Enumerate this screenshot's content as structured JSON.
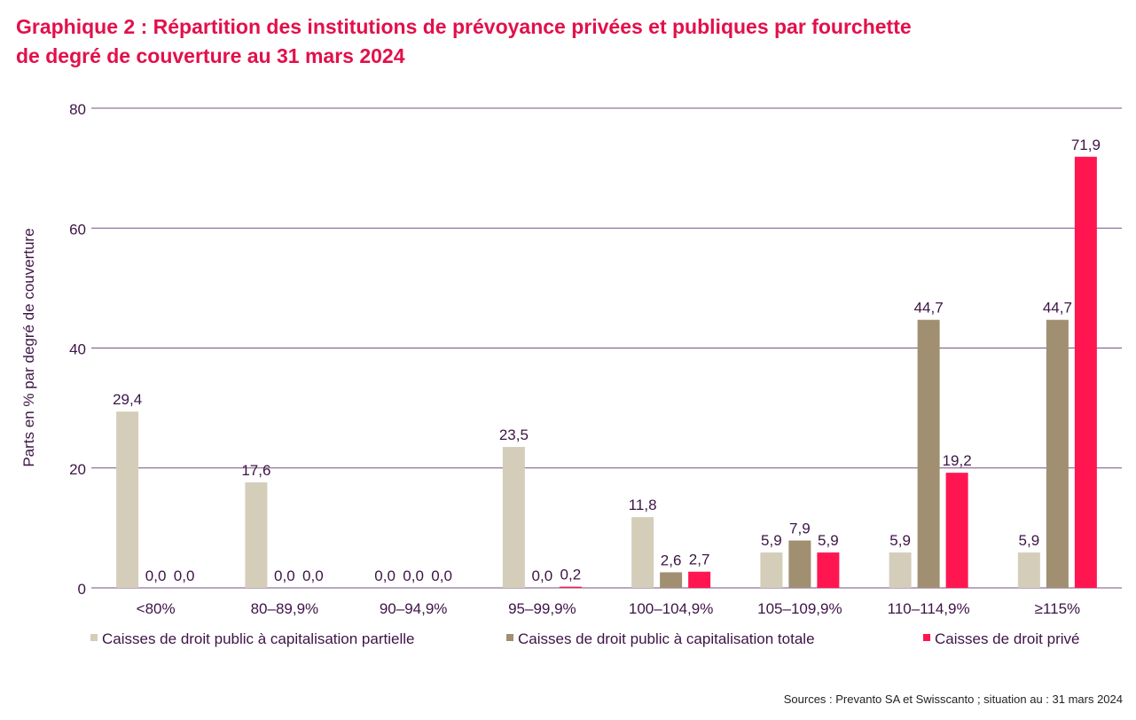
{
  "title_lines": [
    "Graphique 2 : Répartition des institutions de prévoyance privées et publiques par fourchette",
    "de degré de couverture au 31 mars 2024"
  ],
  "source": "Sources : Prevanto SA et Swisscanto ; situation au : 31 mars 2024",
  "colors": {
    "title": "#e2104a",
    "axis_text": "#3d1446",
    "grid": "#7a4f85",
    "partial": "#d4cdb9",
    "total": "#a08f71",
    "private": "#ff1650"
  },
  "chart_data": {
    "type": "bar",
    "ylabel": "Parts en % par degré de couverture",
    "xlabel": "",
    "ylim": [
      0,
      80
    ],
    "yticks": [
      0,
      20,
      40,
      60,
      80
    ],
    "grid": true,
    "legend_position": "bottom",
    "categories": [
      "<80%",
      "80–89,9%",
      "90–94,9%",
      "95–99,9%",
      "100–104,9%",
      "105–109,9%",
      "110–114,9%",
      "≥115%"
    ],
    "series": [
      {
        "name": "Caisses de droit public à capitalisation partielle",
        "color": "#d4cdb9",
        "values": [
          29.4,
          17.6,
          0.0,
          23.5,
          11.8,
          5.9,
          5.9,
          5.9
        ],
        "labels": [
          "29,4",
          "17,6",
          "0,0",
          "23,5",
          "11,8",
          "5,9",
          "5,9",
          "5,9"
        ]
      },
      {
        "name": "Caisses de droit public à capitalisation totale",
        "color": "#a08f71",
        "values": [
          0.0,
          0.0,
          0.0,
          0.0,
          2.6,
          7.9,
          44.7,
          44.7
        ],
        "labels": [
          "0,0",
          "0,0",
          "0,0",
          "0,0",
          "2,6",
          "7,9",
          "44,7",
          "44,7"
        ]
      },
      {
        "name": "Caisses de droit privé",
        "color": "#ff1650",
        "values": [
          0.0,
          0.0,
          0.0,
          0.2,
          2.7,
          5.9,
          19.2,
          71.9
        ],
        "labels": [
          "0,0",
          "0,0",
          "0,0",
          "0,2",
          "2,7",
          "5,9",
          "19,2",
          "71,9"
        ]
      }
    ]
  }
}
